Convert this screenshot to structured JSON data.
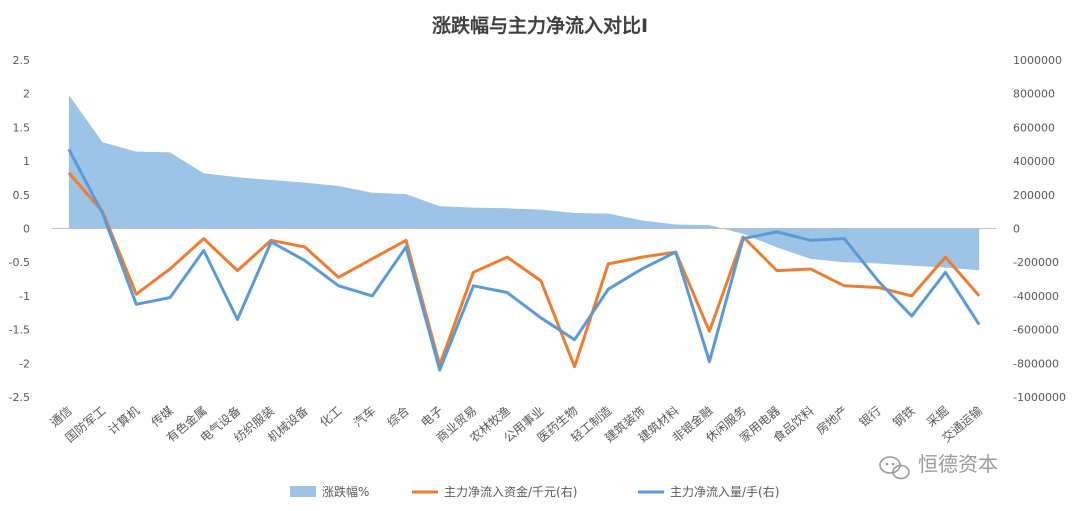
{
  "chart_data": {
    "type": "area+line",
    "title": "涨跌幅与主力净流入对比I",
    "categories": [
      "通信",
      "国防军工",
      "计算机",
      "传媒",
      "有色金属",
      "电气设备",
      "纺织服装",
      "机械设备",
      "化工",
      "汽车",
      "综合",
      "电子",
      "商业贸易",
      "农林牧渔",
      "公用事业",
      "医药生物",
      "轻工制造",
      "建筑装饰",
      "建筑材料",
      "非银金融",
      "休闲服务",
      "家用电器",
      "食品饮料",
      "房地产",
      "银行",
      "钢铁",
      "采掘",
      "交通运输"
    ],
    "y_left": {
      "min": -2.5,
      "max": 2.5,
      "step": 0.5,
      "ticks": [
        "2.5",
        "2",
        "1.5",
        "1",
        "0.5",
        "0",
        "-0.5",
        "-1",
        "-1.5",
        "-2",
        "-2.5"
      ]
    },
    "y_right": {
      "min": -1000000,
      "max": 1000000,
      "step": 200000,
      "ticks": [
        "1000000",
        "800000",
        "600000",
        "400000",
        "200000",
        "0",
        "-200000",
        "-400000",
        "-600000",
        "-800000",
        "-1000000"
      ]
    },
    "series": [
      {
        "name": "涨跌幅%",
        "kind": "area",
        "axis": "left",
        "color": "#9dc3e6",
        "values": [
          1.98,
          1.28,
          1.14,
          1.13,
          0.82,
          0.76,
          0.72,
          0.68,
          0.63,
          0.53,
          0.51,
          0.33,
          0.31,
          0.3,
          0.28,
          0.23,
          0.22,
          0.12,
          0.06,
          0.05,
          -0.08,
          -0.28,
          -0.45,
          -0.5,
          -0.52,
          -0.55,
          -0.58,
          -0.62
        ]
      },
      {
        "name": "主力净流入资金/千元(右)",
        "kind": "line",
        "axis": "right",
        "color": "#ed7d31",
        "values": [
          330000,
          100000,
          -390000,
          -240000,
          -60000,
          -250000,
          -70000,
          -110000,
          -290000,
          -180000,
          -70000,
          -810000,
          -260000,
          -170000,
          -310000,
          -820000,
          -210000,
          -170000,
          -140000,
          -610000,
          -50000,
          -250000,
          -240000,
          -340000,
          -350000,
          -400000,
          -170000,
          -400000
        ]
      },
      {
        "name": "主力净流入量/手(右)",
        "kind": "line",
        "axis": "right",
        "color": "#5b9bd5",
        "values": [
          470000,
          90000,
          -450000,
          -410000,
          -130000,
          -540000,
          -80000,
          -190000,
          -340000,
          -400000,
          -110000,
          -840000,
          -340000,
          -380000,
          -530000,
          -660000,
          -360000,
          -240000,
          -140000,
          -790000,
          -60000,
          -20000,
          -70000,
          -60000,
          -310000,
          -520000,
          -260000,
          -570000
        ]
      }
    ],
    "legend_position": "bottom",
    "grid": false
  },
  "watermark": {
    "icon": "wechat-icon",
    "text": "恒德资本"
  }
}
